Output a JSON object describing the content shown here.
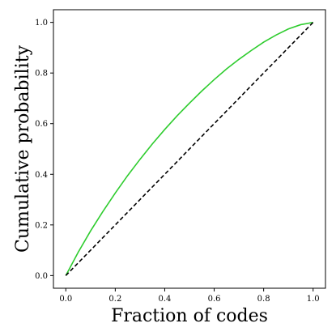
{
  "chart_data": {
    "type": "line",
    "title": "",
    "xlabel": "Fraction of codes",
    "ylabel": "Cumulative probability",
    "xlim": [
      -0.05,
      1.05
    ],
    "ylim": [
      -0.05,
      1.05
    ],
    "grid": false,
    "xticks": [
      0.0,
      0.2,
      0.4,
      0.6,
      0.8,
      1.0
    ],
    "yticks": [
      0.0,
      0.2,
      0.4,
      0.6,
      0.8,
      1.0
    ],
    "xtick_labels": [
      "0.0",
      "0.2",
      "0.4",
      "0.6",
      "0.8",
      "1.0"
    ],
    "ytick_labels": [
      "0.0",
      "0.2",
      "0.4",
      "0.6",
      "0.8",
      "1.0"
    ],
    "series": [
      {
        "style": "solid",
        "color": "#2ecc2e",
        "x": [
          0.0,
          0.05,
          0.1,
          0.15,
          0.2,
          0.25,
          0.3,
          0.35,
          0.4,
          0.45,
          0.5,
          0.55,
          0.6,
          0.65,
          0.7,
          0.75,
          0.8,
          0.85,
          0.9,
          0.95,
          1.0
        ],
        "y": [
          0.0,
          0.092,
          0.176,
          0.253,
          0.326,
          0.395,
          0.459,
          0.52,
          0.577,
          0.631,
          0.681,
          0.729,
          0.774,
          0.816,
          0.854,
          0.889,
          0.922,
          0.95,
          0.974,
          0.991,
          1.0
        ]
      },
      {
        "style": "dashed",
        "color": "#000000",
        "x": [
          0.0,
          1.0
        ],
        "y": [
          0.0,
          1.0
        ]
      }
    ]
  }
}
